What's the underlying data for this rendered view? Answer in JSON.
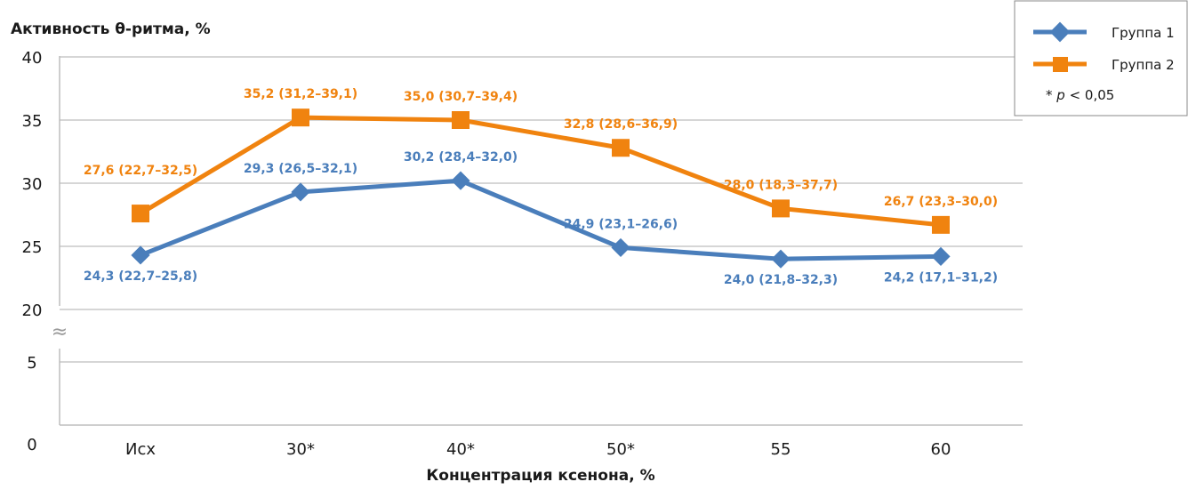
{
  "chart_data": {
    "type": "line",
    "ylabel": "Активность θ-ритма, %",
    "xlabel": "Концентрация ксенона, %",
    "categories": [
      "Исх",
      "30*",
      "40*",
      "50*",
      "55",
      "60"
    ],
    "y_ticks": [
      "0",
      "5",
      "20",
      "25",
      "30",
      "35",
      "40"
    ],
    "axis_break_symbol": "≈",
    "ylim": [
      0,
      40
    ],
    "grid": true,
    "legend_position": "top-right",
    "legend_note_prefix": "* ",
    "legend_note_p": "p",
    "legend_note_suffix": " < 0,05",
    "series": [
      {
        "name": "Группа 1",
        "color": "#4a7ebb",
        "marker": "diamond",
        "values": [
          24.3,
          29.3,
          30.2,
          24.9,
          24.0,
          24.2
        ],
        "labels": [
          "24,3 (22,7–25,8)",
          "29,3 (26,5–32,1)",
          "30,2 (28,4–32,0)",
          "24,9 (23,1–26,6)",
          "24,0 (21,8–32,3)",
          "24,2 (17,1–31,2)"
        ]
      },
      {
        "name": "Группа 2",
        "color": "#f0830f",
        "marker": "square",
        "values": [
          27.6,
          35.2,
          35.0,
          32.8,
          28.0,
          26.7
        ],
        "labels": [
          "27,6 (22,7–32,5)",
          "35,2 (31,2–39,1)",
          "35,0 (30,7–39,4)",
          "32,8 (28,6–36,9)",
          "28,0 (18,3–37,7)",
          "26,7 (23,3–30,0)"
        ]
      }
    ]
  }
}
